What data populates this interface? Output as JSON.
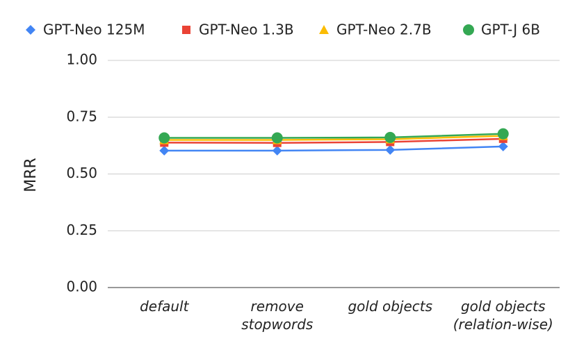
{
  "chart_data": {
    "type": "line",
    "categories": [
      "default",
      "remove stopwords",
      "gold objects",
      "gold objects (relation-wise)"
    ],
    "y_label": "MRR",
    "series": [
      {
        "name": "GPT-Neo 125M",
        "color": "#4285f4",
        "marker": "diamond",
        "values": [
          0.603,
          0.603,
          0.606,
          0.621
        ]
      },
      {
        "name": "GPT-Neo 1.3B",
        "color": "#ea4335",
        "marker": "square",
        "values": [
          0.638,
          0.637,
          0.641,
          0.655
        ]
      },
      {
        "name": "GPT-Neo 2.7B",
        "color": "#fbbc04",
        "marker": "triangle",
        "values": [
          0.65,
          0.65,
          0.653,
          0.668
        ]
      },
      {
        "name": "GPT-J 6B",
        "color": "#34a853",
        "marker": "circle",
        "values": [
          0.659,
          0.659,
          0.661,
          0.677
        ]
      }
    ],
    "ylim": [
      0,
      1
    ],
    "yticks": [
      {
        "value": 0,
        "label": "0.00"
      },
      {
        "value": 0.25,
        "label": "0.25"
      },
      {
        "value": 0.5,
        "label": "0.50"
      },
      {
        "value": 0.75,
        "label": "0.75"
      },
      {
        "value": 1,
        "label": "1.00"
      }
    ],
    "grid": true,
    "legend": "top"
  }
}
